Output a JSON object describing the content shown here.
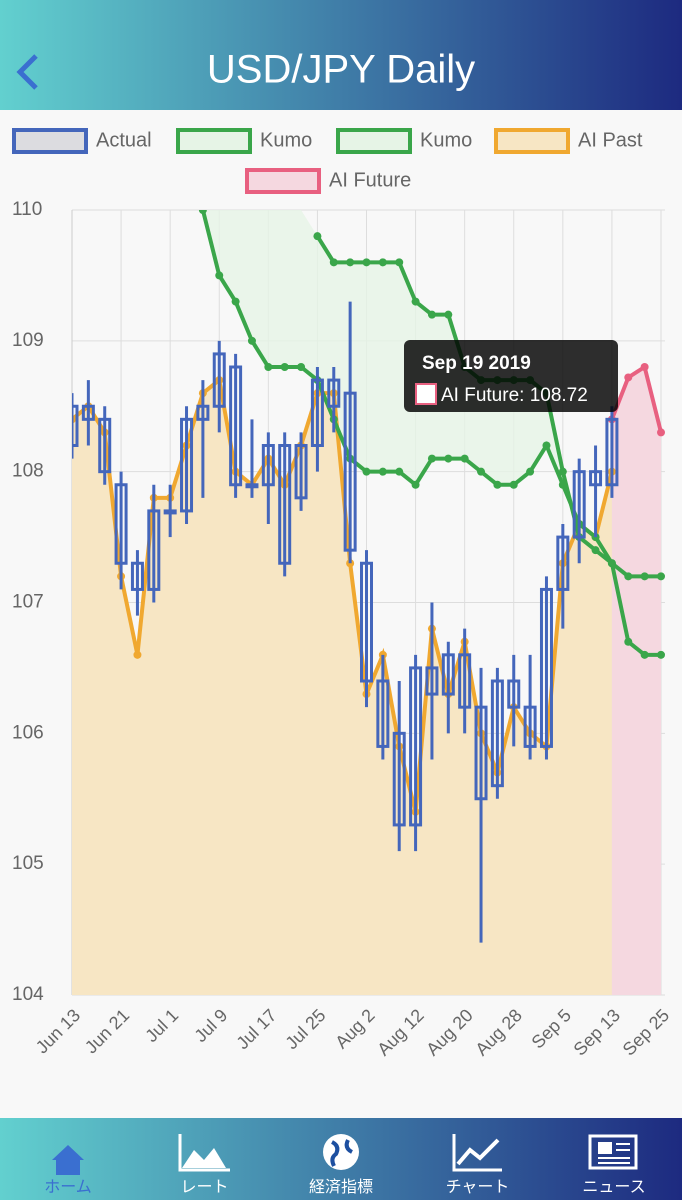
{
  "header": {
    "title": "USD/JPY Daily"
  },
  "chart_data": {
    "type": "combo",
    "categories": [
      "Jun 13",
      null,
      null,
      "Jun 21",
      null,
      null,
      "Jul 1",
      null,
      null,
      "Jul 9",
      null,
      null,
      "Jul 17",
      null,
      null,
      "Jul 25",
      null,
      null,
      "Aug 2",
      null,
      null,
      "Aug 12",
      null,
      null,
      "Aug 20",
      null,
      null,
      "Aug 28",
      null,
      null,
      "Sep 5",
      null,
      null,
      "Sep 13",
      null,
      null,
      "Sep 25"
    ],
    "ylim": [
      104,
      110
    ],
    "yticks": [
      104,
      105,
      106,
      107,
      108,
      109,
      110
    ],
    "grid": true,
    "series": [
      {
        "name": "Actual",
        "type": "candlestick",
        "color": "#4466bb",
        "fill": "#dcdce0",
        "open": [
          108.2,
          108.5,
          108.4,
          107.9,
          107.3,
          107.1,
          107.7,
          107.7,
          108.4,
          108.5,
          108.8,
          107.9,
          107.9,
          108.2,
          107.8,
          108.2,
          108.7,
          108.6,
          107.3,
          106.4,
          106.0,
          105.3,
          106.5,
          106.3,
          106.6,
          106.2,
          105.6,
          106.4,
          106.2,
          105.9,
          107.1,
          107.5,
          108.0,
          107.9,
          null,
          null,
          null
        ],
        "close": [
          108.5,
          108.4,
          108.0,
          107.3,
          107.1,
          107.7,
          107.7,
          108.4,
          108.5,
          108.9,
          107.9,
          107.9,
          108.2,
          107.3,
          108.2,
          108.7,
          108.5,
          107.4,
          106.4,
          105.9,
          105.3,
          106.5,
          106.3,
          106.6,
          106.2,
          105.5,
          106.4,
          106.2,
          105.9,
          107.1,
          107.5,
          108.0,
          107.9,
          108.4,
          null,
          null,
          null
        ],
        "high": [
          108.6,
          108.7,
          108.5,
          108.0,
          107.4,
          107.9,
          107.9,
          108.5,
          108.7,
          109.0,
          108.9,
          108.4,
          108.3,
          108.3,
          108.3,
          108.8,
          108.8,
          109.3,
          107.4,
          106.6,
          106.4,
          106.6,
          107.0,
          106.7,
          106.8,
          106.5,
          106.5,
          106.6,
          106.6,
          107.2,
          107.6,
          108.1,
          108.2,
          108.5,
          null,
          null,
          null
        ],
        "low": [
          108.1,
          108.2,
          107.9,
          107.1,
          106.9,
          107.0,
          107.5,
          107.6,
          107.8,
          108.3,
          107.8,
          107.8,
          107.6,
          107.2,
          107.7,
          108.0,
          108.3,
          107.3,
          106.2,
          105.8,
          105.1,
          105.1,
          105.8,
          106.0,
          106.0,
          104.4,
          105.5,
          105.9,
          105.8,
          105.8,
          106.8,
          107.3,
          107.5,
          107.8,
          null,
          null,
          null
        ]
      },
      {
        "name": "Kumo",
        "type": "kumo",
        "color": "#3aa64a",
        "fill": "#e6f4e6",
        "values": [
          null,
          null,
          null,
          null,
          null,
          null,
          null,
          null,
          110.0,
          109.5,
          109.3,
          109.0,
          108.8,
          108.8,
          108.8,
          108.7,
          108.4,
          108.1,
          108.0,
          108.0,
          108.0,
          107.9,
          108.1,
          108.1,
          108.1,
          108.0,
          107.9,
          107.9,
          108.0,
          108.2,
          107.9,
          107.6,
          107.5,
          107.3,
          107.2,
          107.2,
          107.2
        ]
      },
      {
        "name": "Kumo",
        "type": "kumo",
        "color": "#3aa64a",
        "fill": "#e6f4e6",
        "values": [
          null,
          null,
          null,
          null,
          null,
          null,
          null,
          null,
          null,
          null,
          null,
          null,
          null,
          null,
          null,
          109.8,
          109.6,
          109.6,
          109.6,
          109.6,
          109.6,
          109.3,
          109.2,
          109.2,
          108.8,
          108.7,
          108.7,
          108.7,
          108.7,
          108.6,
          108.0,
          107.5,
          107.4,
          107.3,
          106.7,
          106.6,
          106.6
        ]
      },
      {
        "name": "AI Past",
        "type": "area",
        "color": "#f0a830",
        "fill": "#f7e6c4",
        "values": [
          108.4,
          108.5,
          108.3,
          107.2,
          106.6,
          107.8,
          107.8,
          108.2,
          108.6,
          108.7,
          108.0,
          107.9,
          108.1,
          107.9,
          108.2,
          108.6,
          108.6,
          107.3,
          106.3,
          106.6,
          105.9,
          105.4,
          106.8,
          106.3,
          106.7,
          106.0,
          105.7,
          106.2,
          106.0,
          105.9,
          107.3,
          107.6,
          107.5,
          108.0,
          null,
          null,
          null
        ]
      },
      {
        "name": "AI Future",
        "type": "area",
        "color": "#e86080",
        "fill": "#f5d8e0",
        "values": [
          null,
          null,
          null,
          null,
          null,
          null,
          null,
          null,
          null,
          null,
          null,
          null,
          null,
          null,
          null,
          null,
          null,
          null,
          null,
          null,
          null,
          null,
          null,
          null,
          null,
          null,
          null,
          null,
          null,
          null,
          null,
          null,
          null,
          108.4,
          108.72,
          108.8,
          108.3
        ]
      }
    ]
  },
  "tooltip": {
    "title": "Sep 19 2019",
    "label": "AI Future: 108.72"
  },
  "nav": {
    "tabs": [
      "ホーム",
      "レート",
      "経済指標",
      "チャート",
      "ニュース"
    ]
  }
}
